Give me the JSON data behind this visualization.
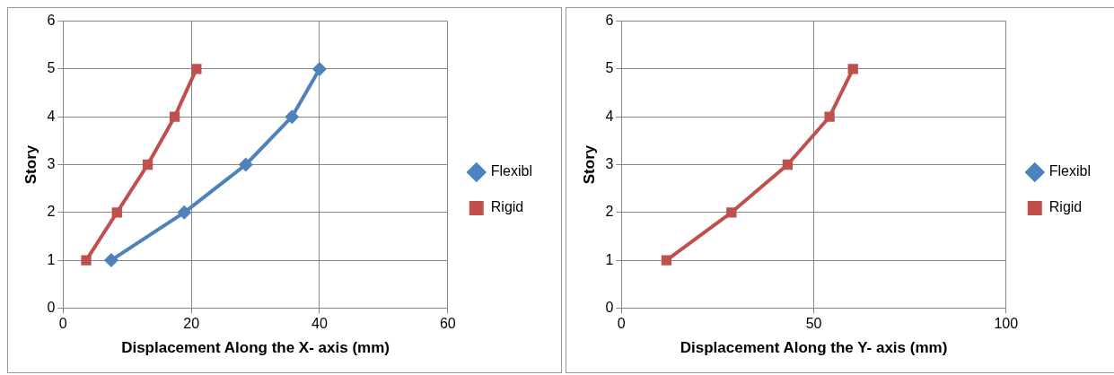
{
  "chart_data": [
    {
      "type": "line",
      "xlabel": "Displacement Along the X- axis (mm)",
      "ylabel": "Story",
      "xlim": [
        0,
        60
      ],
      "xticks": [
        0,
        20,
        40,
        60
      ],
      "ylim": [
        0,
        6
      ],
      "yticks": [
        0,
        1,
        2,
        3,
        4,
        5,
        6
      ],
      "grid": true,
      "legend": "right",
      "series": [
        {
          "name": "Flexibl",
          "color": "#4f81bd",
          "marker": "diamond",
          "x": [
            7.5,
            18.9,
            28.5,
            35.7,
            40.0
          ],
          "values": [
            1,
            2,
            3,
            4,
            5
          ]
        },
        {
          "name": "Rigid",
          "color": "#c0504d",
          "marker": "square",
          "x": [
            3.6,
            8.4,
            13.2,
            17.4,
            20.8
          ],
          "values": [
            1,
            2,
            3,
            4,
            5
          ]
        }
      ]
    },
    {
      "type": "line",
      "xlabel": "Displacement Along the Y- axis (mm)",
      "ylabel": "Story",
      "xlim": [
        0,
        100
      ],
      "xticks": [
        0,
        50,
        100
      ],
      "ylim": [
        0,
        6
      ],
      "yticks": [
        0,
        1,
        2,
        3,
        4,
        5,
        6
      ],
      "grid": true,
      "legend": "right",
      "series": [
        {
          "name": "Flexibl",
          "color": "#4f81bd",
          "marker": "diamond",
          "values": [
            null,
            null,
            null,
            null,
            null
          ]
        },
        {
          "name": "Rigid",
          "color": "#c0504d",
          "marker": "square",
          "x": [
            11.7,
            28.6,
            43.2,
            54.1,
            60.2
          ],
          "values": [
            1,
            2,
            3,
            4,
            5
          ]
        }
      ]
    }
  ]
}
